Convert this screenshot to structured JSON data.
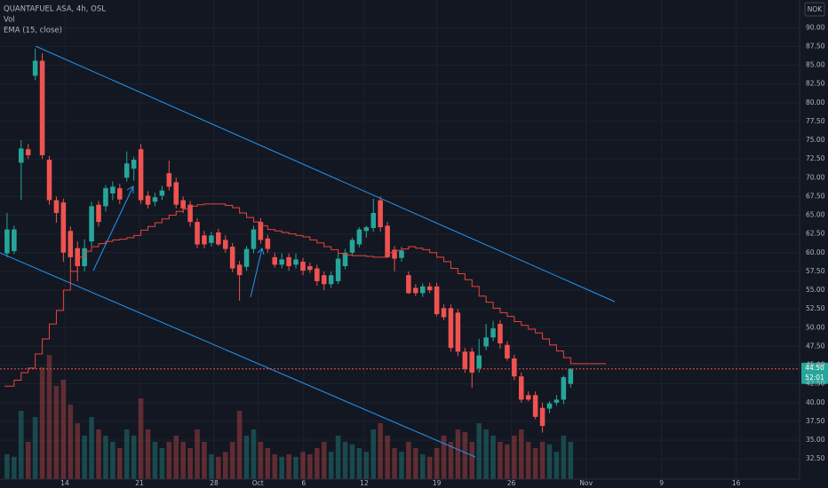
{
  "chart_data": {
    "type": "candlestick",
    "title": "QUANTAFUEL ASA, 4h, OSL",
    "volume_label": "Vol",
    "ema_label": "EMA (15, close)",
    "currency": "NOK",
    "up_color": "#26a69a",
    "down_color": "#ef5350",
    "ema_color": "#e8453c",
    "grid": true,
    "ohlc": [
      [
        59.9,
        65.3,
        59.4,
        63.1
      ],
      [
        60.2,
        63.6,
        59.8,
        63.1
      ],
      [
        72.0,
        75.0,
        67.0,
        73.9
      ],
      [
        73.8,
        74.5,
        72.5,
        73.0
      ],
      [
        83.6,
        87.2,
        83.0,
        85.6
      ],
      [
        85.6,
        86.6,
        72.5,
        73.0
      ],
      [
        72.4,
        72.9,
        66.4,
        67.0
      ],
      [
        67.0,
        67.5,
        64.0,
        65.3
      ],
      [
        66.7,
        67.2,
        58.8,
        60.0
      ],
      [
        62.9,
        63.5,
        57.5,
        59.4
      ],
      [
        60.6,
        61.5,
        56.2,
        58.2
      ],
      [
        58.2,
        61.8,
        57.5,
        60.6
      ],
      [
        61.5,
        66.8,
        60.9,
        66.2
      ],
      [
        66.4,
        66.9,
        63.5,
        64.1
      ],
      [
        66.2,
        69.0,
        65.5,
        68.6
      ],
      [
        67.9,
        69.5,
        67.0,
        68.8
      ],
      [
        68.6,
        69.2,
        66.5,
        67.1
      ],
      [
        70.0,
        73.5,
        69.5,
        71.9
      ],
      [
        71.2,
        72.8,
        69.6,
        72.4
      ],
      [
        73.8,
        74.5,
        66.5,
        67.0
      ],
      [
        67.6,
        68.2,
        65.9,
        66.4
      ],
      [
        66.8,
        68.0,
        66.2,
        67.4
      ],
      [
        67.6,
        68.9,
        67.0,
        68.3
      ],
      [
        70.6,
        72.3,
        68.3,
        68.8
      ],
      [
        69.4,
        70.0,
        65.9,
        66.4
      ],
      [
        67.0,
        67.5,
        65.3,
        65.9
      ],
      [
        66.4,
        66.9,
        63.5,
        64.1
      ],
      [
        64.1,
        64.6,
        60.6,
        61.1
      ],
      [
        62.3,
        62.9,
        60.6,
        61.1
      ],
      [
        61.3,
        62.8,
        60.8,
        62.3
      ],
      [
        62.7,
        63.2,
        60.9,
        61.1
      ],
      [
        61.7,
        62.3,
        60.0,
        60.5
      ],
      [
        60.8,
        61.3,
        57.4,
        57.9
      ],
      [
        58.4,
        58.9,
        53.6,
        57.0
      ],
      [
        58.1,
        60.9,
        57.6,
        60.5
      ],
      [
        60.5,
        63.6,
        59.9,
        63.1
      ],
      [
        64.1,
        64.6,
        61.2,
        61.7
      ],
      [
        61.9,
        62.4,
        60.0,
        60.5
      ],
      [
        59.4,
        60.0,
        58.0,
        58.4
      ],
      [
        58.4,
        59.9,
        57.9,
        59.1
      ],
      [
        59.4,
        59.9,
        57.6,
        58.2
      ],
      [
        58.4,
        59.9,
        57.9,
        59.1
      ],
      [
        58.8,
        59.3,
        57.0,
        57.6
      ],
      [
        58.2,
        58.7,
        57.3,
        57.7
      ],
      [
        57.9,
        58.4,
        55.6,
        56.2
      ],
      [
        57.0,
        57.5,
        55.0,
        55.8
      ],
      [
        55.8,
        57.5,
        55.3,
        57.0
      ],
      [
        56.2,
        60.0,
        55.8,
        59.2
      ],
      [
        58.2,
        60.5,
        57.8,
        60.0
      ],
      [
        60.0,
        62.0,
        59.6,
        61.7
      ],
      [
        61.1,
        63.4,
        60.7,
        63.1
      ],
      [
        62.9,
        63.6,
        62.0,
        63.4
      ],
      [
        63.3,
        67.2,
        62.8,
        65.3
      ],
      [
        67.0,
        67.5,
        62.8,
        63.4
      ],
      [
        63.6,
        64.1,
        59.3,
        59.4
      ],
      [
        60.4,
        60.9,
        57.5,
        59.2
      ],
      [
        59.3,
        60.8,
        58.8,
        60.3
      ],
      [
        57.0,
        57.5,
        54.5,
        54.6
      ],
      [
        55.3,
        55.8,
        54.2,
        54.6
      ],
      [
        54.6,
        55.9,
        54.1,
        55.5
      ],
      [
        55.5,
        56.0,
        54.6,
        55.0
      ],
      [
        55.5,
        56.0,
        51.5,
        51.8
      ],
      [
        52.6,
        53.1,
        51.0,
        51.4
      ],
      [
        52.6,
        53.1,
        46.8,
        47.3
      ],
      [
        52.0,
        52.5,
        46.2,
        46.8
      ],
      [
        46.8,
        47.3,
        44.0,
        44.5
      ],
      [
        46.8,
        47.3,
        42.0,
        44.0
      ],
      [
        44.6,
        48.5,
        44.0,
        46.3
      ],
      [
        47.5,
        50.5,
        47.0,
        48.7
      ],
      [
        48.7,
        50.9,
        48.2,
        49.9
      ],
      [
        50.5,
        51.0,
        47.2,
        47.9
      ],
      [
        47.7,
        48.2,
        45.6,
        45.9
      ],
      [
        45.9,
        46.4,
        43.0,
        43.5
      ],
      [
        43.5,
        44.0,
        40.0,
        40.4
      ],
      [
        41.0,
        41.5,
        40.2,
        40.4
      ],
      [
        41.0,
        41.5,
        37.8,
        38.1
      ],
      [
        39.3,
        40.0,
        36.0,
        36.9
      ],
      [
        39.2,
        40.2,
        38.6,
        39.9
      ],
      [
        40.0,
        41.0,
        39.6,
        40.4
      ],
      [
        40.4,
        43.6,
        39.8,
        43.4
      ],
      [
        42.5,
        44.6,
        42.0,
        44.5
      ]
    ],
    "volume": [
      20,
      18,
      55,
      30,
      50,
      90,
      100,
      75,
      80,
      60,
      45,
      35,
      50,
      40,
      35,
      30,
      25,
      40,
      35,
      65,
      40,
      30,
      25,
      30,
      35,
      30,
      25,
      40,
      30,
      20,
      18,
      22,
      30,
      55,
      35,
      40,
      30,
      25,
      20,
      18,
      20,
      18,
      22,
      20,
      25,
      30,
      22,
      35,
      30,
      28,
      25,
      22,
      40,
      45,
      35,
      25,
      22,
      30,
      25,
      20,
      18,
      25,
      35,
      30,
      40,
      38,
      30,
      45,
      40,
      35,
      30,
      28,
      35,
      40,
      30,
      25,
      30,
      28,
      22,
      35,
      30
    ],
    "volume_lim": [
      0,
      100
    ],
    "ema": [
      42.2,
      43.0,
      44.0,
      44.6,
      46.5,
      48.5,
      50.5,
      52.3,
      55.0,
      57.5,
      59.4,
      60.2,
      60.8,
      61.2,
      61.5,
      61.7,
      61.8,
      62.0,
      62.3,
      63.0,
      63.5,
      64.0,
      64.5,
      65.0,
      65.5,
      65.8,
      66.2,
      66.4,
      66.5,
      66.5,
      66.5,
      66.3,
      66.0,
      65.3,
      64.7,
      64.1,
      63.6,
      63.1,
      62.9,
      62.7,
      62.5,
      62.3,
      62.1,
      61.7,
      61.3,
      60.8,
      60.4,
      59.9,
      59.7,
      59.6,
      59.6,
      59.5,
      59.4,
      59.4,
      60.0,
      60.3,
      60.5,
      60.8,
      60.6,
      60.4,
      60.0,
      59.4,
      58.8,
      57.9,
      57.2,
      56.4,
      55.5,
      54.2,
      53.4,
      52.6,
      52.0,
      51.5,
      50.8,
      50.3,
      49.8,
      49.3,
      48.5,
      47.7,
      46.9,
      46.0,
      45.2
    ],
    "last_price": {
      "value": 44.5,
      "label": "44.50"
    },
    "countdown": "52:01",
    "xlim": [
      -1,
      112.5
    ],
    "ylim": [
      29.8,
      93.7
    ],
    "xticks": [
      {
        "value": 8.2,
        "label": "14"
      },
      {
        "value": 18.8,
        "label": "21"
      },
      {
        "value": 29.4,
        "label": "28"
      },
      {
        "value": 35.6,
        "label": "Oct"
      },
      {
        "value": 42.1,
        "label": "6"
      },
      {
        "value": 50.7,
        "label": "12"
      },
      {
        "value": 61.0,
        "label": "19"
      },
      {
        "value": 71.6,
        "label": "26"
      },
      {
        "value": 82.2,
        "label": "Nov"
      },
      {
        "value": 92.9,
        "label": "9"
      },
      {
        "value": 103.5,
        "label": "16"
      }
    ],
    "yticks": [
      {
        "value": 32.5,
        "label": "32.50"
      },
      {
        "value": 35,
        "label": "35.00"
      },
      {
        "value": 37.5,
        "label": "37.50"
      },
      {
        "value": 40,
        "label": "40.00"
      },
      {
        "value": 42.5,
        "label": "42.50"
      },
      {
        "value": 45,
        "label": "45.00"
      },
      {
        "value": 47.5,
        "label": "47.50"
      },
      {
        "value": 50,
        "label": "50.00"
      },
      {
        "value": 52.5,
        "label": "52.50"
      },
      {
        "value": 55,
        "label": "55.00"
      },
      {
        "value": 57.5,
        "label": "57.50"
      },
      {
        "value": 60,
        "label": "60.00"
      },
      {
        "value": 62.5,
        "label": "62.50"
      },
      {
        "value": 65,
        "label": "65.00"
      },
      {
        "value": 67.5,
        "label": "67.50"
      },
      {
        "value": 70,
        "label": "70.00"
      },
      {
        "value": 72.5,
        "label": "72.50"
      },
      {
        "value": 75,
        "label": "75.00"
      },
      {
        "value": 77.5,
        "label": "77.50"
      },
      {
        "value": 80,
        "label": "80.00"
      },
      {
        "value": 82.5,
        "label": "82.50"
      },
      {
        "value": 85,
        "label": "85.00"
      },
      {
        "value": 87.5,
        "label": "87.50"
      },
      {
        "value": 90,
        "label": "90.00"
      }
    ]
  }
}
